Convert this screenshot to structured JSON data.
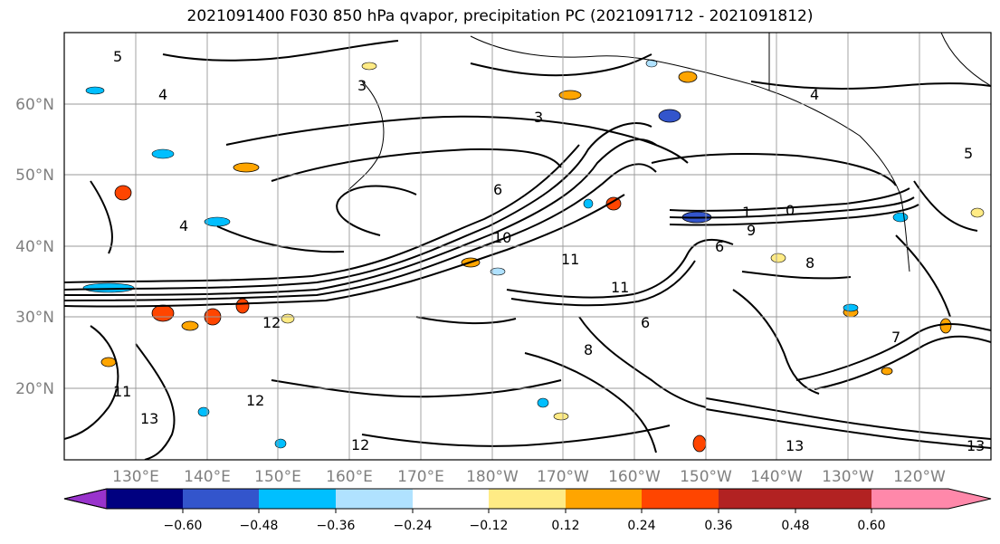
{
  "title": "2021091400 F030 850 hPa qvapor, precipitation PC (2021091712 - 2021091812)",
  "map": {
    "lat_labels": [
      "60°N",
      "50°N",
      "40°N",
      "30°N",
      "20°N"
    ],
    "lon_labels": [
      "130°E",
      "140°E",
      "150°E",
      "160°E",
      "170°E",
      "180°W",
      "170°W",
      "160°W",
      "150°W",
      "140°W",
      "130°W",
      "120°W"
    ],
    "contour_labels": [
      "5",
      "4",
      "3",
      "3",
      "4",
      "6",
      "1",
      "0",
      "9",
      "6",
      "10",
      "11",
      "11",
      "8",
      "8",
      "6",
      "12",
      "12",
      "12",
      "13",
      "13",
      "13",
      "11",
      "4",
      "5",
      "7"
    ],
    "grid": true,
    "coastline_color": "#000000"
  },
  "colorbar": {
    "ticks": [
      "−0.60",
      "−0.48",
      "−0.36",
      "−0.24",
      "−0.12",
      "0.12",
      "0.24",
      "0.36",
      "0.48",
      "0.60"
    ],
    "colors": [
      "#9933cc",
      "#000080",
      "#3355cc",
      "#00bfff",
      "#b0e2ff",
      "#ffffff",
      "#ffeb85",
      "#ffa500",
      "#ff4500",
      "#b22222",
      "#ff88aa"
    ],
    "extend": "both"
  }
}
